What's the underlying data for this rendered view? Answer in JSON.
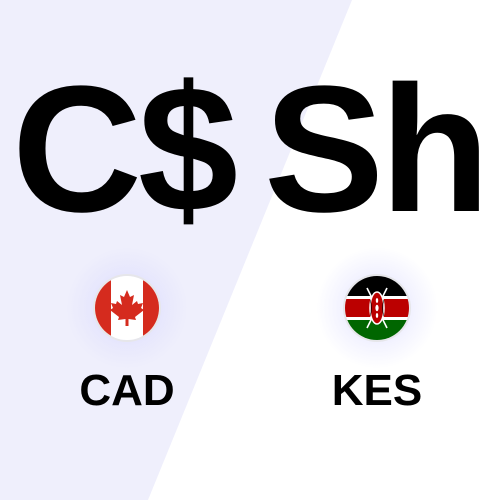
{
  "from": {
    "symbol": "C$",
    "code": "CAD",
    "flag_icon": "canada-flag-icon"
  },
  "to": {
    "symbol": "Sh",
    "code": "KES",
    "flag_icon": "kenya-flag-icon"
  },
  "colors": {
    "left_background": "#efeffc",
    "right_background": "#ffffff",
    "text": "#000000",
    "canada_red": "#d52b1e",
    "kenya_green": "#006600",
    "kenya_red": "#bb0000"
  }
}
